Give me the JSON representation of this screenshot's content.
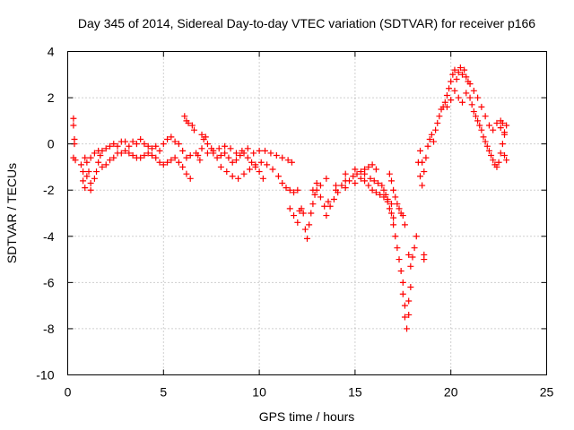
{
  "chart_data": {
    "type": "scatter",
    "title": "Day 345 of 2014, Sidereal Day-to-day VTEC variation (SDTVAR) for receiver p166",
    "xlabel": "GPS time / hours",
    "ylabel": "SDTVAR / TECUs",
    "xlim": [
      0,
      25
    ],
    "ylim": [
      -10,
      4
    ],
    "xticks": [
      0,
      5,
      10,
      15,
      20,
      25
    ],
    "yticks": [
      -10,
      -8,
      -6,
      -4,
      -2,
      0,
      2,
      4
    ],
    "grid": true,
    "marker": "plus",
    "color": "#ff0000",
    "series": [
      {
        "name": "p166",
        "points": [
          [
            0.3,
            1.1
          ],
          [
            0.3,
            0.8
          ],
          [
            0.35,
            0.2
          ],
          [
            0.35,
            0.0
          ],
          [
            0.3,
            -0.6
          ],
          [
            0.4,
            -0.7
          ],
          [
            0.7,
            -0.9
          ],
          [
            0.8,
            -1.2
          ],
          [
            0.8,
            -1.6
          ],
          [
            0.9,
            -1.9
          ],
          [
            1.0,
            -1.4
          ],
          [
            1.1,
            -1.2
          ],
          [
            1.2,
            -1.7
          ],
          [
            1.2,
            -2.0
          ],
          [
            1.4,
            -1.5
          ],
          [
            1.5,
            -1.2
          ],
          [
            1.6,
            -0.8
          ],
          [
            1.7,
            -0.5
          ],
          [
            0.9,
            -0.6
          ],
          [
            1.0,
            -0.8
          ],
          [
            1.2,
            -0.6
          ],
          [
            1.4,
            -0.4
          ],
          [
            1.6,
            -0.3
          ],
          [
            1.8,
            -0.3
          ],
          [
            2.0,
            -0.2
          ],
          [
            2.2,
            -0.1
          ],
          [
            2.4,
            0.0
          ],
          [
            2.6,
            -0.1
          ],
          [
            2.8,
            0.1
          ],
          [
            3.0,
            0.1
          ],
          [
            3.2,
            -0.1
          ],
          [
            3.4,
            0.1
          ],
          [
            3.6,
            0.0
          ],
          [
            3.8,
            0.2
          ],
          [
            4.0,
            0.0
          ],
          [
            4.2,
            -0.1
          ],
          [
            4.4,
            -0.2
          ],
          [
            4.6,
            -0.1
          ],
          [
            4.8,
            -0.3
          ],
          [
            5.0,
            0.0
          ],
          [
            5.2,
            0.2
          ],
          [
            5.4,
            0.3
          ],
          [
            5.6,
            0.1
          ],
          [
            5.8,
            0.0
          ],
          [
            6.0,
            -0.3
          ],
          [
            6.2,
            -0.6
          ],
          [
            6.4,
            -0.5
          ],
          [
            1.8,
            -1.0
          ],
          [
            2.0,
            -0.9
          ],
          [
            2.2,
            -0.7
          ],
          [
            2.4,
            -0.6
          ],
          [
            2.6,
            -0.4
          ],
          [
            2.8,
            -0.4
          ],
          [
            3.0,
            -0.3
          ],
          [
            3.2,
            -0.4
          ],
          [
            3.4,
            -0.5
          ],
          [
            3.6,
            -0.6
          ],
          [
            3.8,
            -0.6
          ],
          [
            4.0,
            -0.5
          ],
          [
            4.2,
            -0.4
          ],
          [
            4.4,
            -0.5
          ],
          [
            4.6,
            -0.6
          ],
          [
            4.8,
            -0.8
          ],
          [
            5.0,
            -0.9
          ],
          [
            5.2,
            -0.8
          ],
          [
            5.4,
            -0.7
          ],
          [
            5.6,
            -0.6
          ],
          [
            5.8,
            -0.8
          ],
          [
            6.0,
            -1.0
          ],
          [
            6.2,
            -1.3
          ],
          [
            6.4,
            -1.5
          ],
          [
            6.1,
            1.2
          ],
          [
            6.2,
            1.0
          ],
          [
            6.3,
            0.9
          ],
          [
            6.5,
            0.8
          ],
          [
            6.6,
            0.6
          ],
          [
            6.7,
            -0.4
          ],
          [
            6.8,
            -0.5
          ],
          [
            6.9,
            -0.7
          ],
          [
            7.0,
            0.4
          ],
          [
            7.1,
            0.2
          ],
          [
            7.2,
            0.3
          ],
          [
            7.3,
            0.0
          ],
          [
            7.5,
            -0.2
          ],
          [
            7.6,
            -0.4
          ],
          [
            7.8,
            -0.6
          ],
          [
            8.0,
            -0.5
          ],
          [
            8.2,
            -0.4
          ],
          [
            8.4,
            -0.6
          ],
          [
            8.6,
            -0.8
          ],
          [
            8.8,
            -0.7
          ],
          [
            9.0,
            -0.5
          ],
          [
            9.2,
            -0.4
          ],
          [
            9.4,
            -0.6
          ],
          [
            9.6,
            -0.8
          ],
          [
            9.8,
            -1.0
          ],
          [
            10.0,
            -1.2
          ],
          [
            10.2,
            -1.5
          ],
          [
            7.0,
            -0.2
          ],
          [
            7.3,
            -0.4
          ],
          [
            7.6,
            -0.3
          ],
          [
            7.9,
            -0.2
          ],
          [
            8.2,
            -0.1
          ],
          [
            8.5,
            -0.2
          ],
          [
            8.8,
            -0.4
          ],
          [
            9.1,
            -0.3
          ],
          [
            9.4,
            -0.2
          ],
          [
            9.7,
            -0.4
          ],
          [
            10.0,
            -0.3
          ],
          [
            10.3,
            -0.3
          ],
          [
            10.6,
            -0.4
          ],
          [
            10.9,
            -0.5
          ],
          [
            11.2,
            -0.6
          ],
          [
            11.5,
            -0.7
          ],
          [
            11.7,
            -0.8
          ],
          [
            8.0,
            -1.0
          ],
          [
            8.3,
            -1.2
          ],
          [
            8.6,
            -1.4
          ],
          [
            8.9,
            -1.5
          ],
          [
            9.2,
            -1.3
          ],
          [
            9.5,
            -1.1
          ],
          [
            9.8,
            -0.9
          ],
          [
            10.1,
            -0.8
          ],
          [
            10.4,
            -0.9
          ],
          [
            10.7,
            -1.1
          ],
          [
            11.0,
            -1.4
          ],
          [
            11.2,
            -1.7
          ],
          [
            11.4,
            -1.9
          ],
          [
            11.6,
            -2.0
          ],
          [
            11.8,
            -2.1
          ],
          [
            12.0,
            -2.0
          ],
          [
            11.6,
            -2.8
          ],
          [
            11.8,
            -3.1
          ],
          [
            12.0,
            -3.4
          ],
          [
            12.1,
            -2.9
          ],
          [
            12.2,
            -2.8
          ],
          [
            12.3,
            -3.0
          ],
          [
            12.4,
            -3.7
          ],
          [
            12.5,
            -4.1
          ],
          [
            12.6,
            -3.5
          ],
          [
            12.7,
            -3.0
          ],
          [
            12.8,
            -2.6
          ],
          [
            12.9,
            -2.2
          ],
          [
            13.0,
            -2.0
          ],
          [
            13.2,
            -2.3
          ],
          [
            13.4,
            -2.7
          ],
          [
            13.5,
            -3.1
          ],
          [
            13.7,
            -2.7
          ],
          [
            13.9,
            -2.4
          ],
          [
            14.1,
            -2.1
          ],
          [
            14.3,
            -1.8
          ],
          [
            14.5,
            -1.6
          ],
          [
            14.7,
            -1.6
          ],
          [
            14.9,
            -1.4
          ],
          [
            15.1,
            -1.3
          ],
          [
            15.3,
            -1.2
          ],
          [
            15.5,
            -1.1
          ],
          [
            15.7,
            -1.0
          ],
          [
            15.9,
            -0.9
          ],
          [
            16.1,
            -1.1
          ],
          [
            12.8,
            -2.0
          ],
          [
            13.0,
            -1.7
          ],
          [
            13.2,
            -1.8
          ],
          [
            13.6,
            -2.5
          ],
          [
            14.0,
            -2.0
          ],
          [
            14.5,
            -1.3
          ],
          [
            15.0,
            -1.1
          ],
          [
            15.5,
            -1.3
          ],
          [
            15.8,
            -1.5
          ],
          [
            16.0,
            -1.6
          ],
          [
            16.2,
            -1.7
          ],
          [
            16.4,
            -1.8
          ],
          [
            16.5,
            -2.0
          ],
          [
            16.6,
            -2.2
          ],
          [
            16.7,
            -2.4
          ],
          [
            16.8,
            -2.8
          ],
          [
            16.9,
            -3.0
          ],
          [
            17.0,
            -3.2
          ],
          [
            13.5,
            -1.5
          ],
          [
            14.0,
            -1.8
          ],
          [
            14.5,
            -1.9
          ],
          [
            15.0,
            -1.7
          ],
          [
            15.3,
            -1.5
          ],
          [
            15.5,
            -1.6
          ],
          [
            15.7,
            -1.8
          ],
          [
            15.9,
            -2.0
          ],
          [
            16.1,
            -2.1
          ],
          [
            16.3,
            -2.2
          ],
          [
            16.5,
            -2.3
          ],
          [
            16.7,
            -2.5
          ],
          [
            16.9,
            -2.6
          ],
          [
            17.0,
            -3.5
          ],
          [
            17.1,
            -4.0
          ],
          [
            17.2,
            -4.5
          ],
          [
            17.3,
            -5.0
          ],
          [
            17.4,
            -5.5
          ],
          [
            17.5,
            -6.0
          ],
          [
            17.5,
            -6.5
          ],
          [
            17.6,
            -7.0
          ],
          [
            17.6,
            -7.5
          ],
          [
            17.7,
            -8.0
          ],
          [
            17.8,
            -7.4
          ],
          [
            17.8,
            -6.8
          ],
          [
            17.9,
            -6.2
          ],
          [
            16.8,
            -1.3
          ],
          [
            16.9,
            -1.6
          ],
          [
            17.0,
            -2.0
          ],
          [
            17.1,
            -2.3
          ],
          [
            17.2,
            -2.6
          ],
          [
            17.3,
            -2.8
          ],
          [
            17.4,
            -3.0
          ],
          [
            17.5,
            -3.1
          ],
          [
            17.6,
            -3.5
          ],
          [
            17.8,
            -4.8
          ],
          [
            17.9,
            -5.3
          ],
          [
            18.0,
            -4.9
          ],
          [
            18.1,
            -4.5
          ],
          [
            18.2,
            -4.0
          ],
          [
            18.4,
            -1.4
          ],
          [
            18.5,
            -1.8
          ],
          [
            18.6,
            -4.8
          ],
          [
            18.6,
            -5.0
          ],
          [
            18.3,
            -0.8
          ],
          [
            18.4,
            -0.3
          ],
          [
            18.5,
            -0.8
          ],
          [
            18.6,
            -1.2
          ],
          [
            18.7,
            -0.6
          ],
          [
            18.8,
            -0.1
          ],
          [
            18.9,
            0.2
          ],
          [
            19.0,
            0.4
          ],
          [
            19.1,
            0.1
          ],
          [
            19.2,
            0.6
          ],
          [
            19.3,
            0.9
          ],
          [
            19.4,
            1.2
          ],
          [
            19.5,
            1.5
          ],
          [
            19.6,
            1.6
          ],
          [
            19.7,
            1.8
          ],
          [
            19.8,
            2.1
          ],
          [
            19.9,
            2.4
          ],
          [
            20.0,
            2.7
          ],
          [
            20.1,
            3.0
          ],
          [
            20.2,
            3.2
          ],
          [
            20.3,
            2.8
          ],
          [
            20.4,
            3.1
          ],
          [
            20.5,
            3.3
          ],
          [
            20.6,
            3.0
          ],
          [
            20.7,
            3.2
          ],
          [
            20.8,
            2.9
          ],
          [
            20.9,
            2.7
          ],
          [
            19.8,
            1.6
          ],
          [
            20.0,
            1.9
          ],
          [
            20.2,
            2.3
          ],
          [
            20.4,
            2.0
          ],
          [
            20.6,
            1.8
          ],
          [
            20.8,
            2.2
          ],
          [
            21.0,
            2.0
          ],
          [
            21.1,
            1.7
          ],
          [
            21.2,
            1.4
          ],
          [
            21.3,
            1.2
          ],
          [
            21.4,
            1.0
          ],
          [
            21.5,
            0.8
          ],
          [
            21.6,
            0.6
          ],
          [
            21.7,
            0.3
          ],
          [
            21.8,
            0.1
          ],
          [
            21.9,
            -0.1
          ],
          [
            22.0,
            -0.3
          ],
          [
            22.1,
            -0.5
          ],
          [
            22.2,
            -0.7
          ],
          [
            22.3,
            -0.9
          ],
          [
            22.4,
            -1.0
          ],
          [
            22.5,
            -0.8
          ],
          [
            22.6,
            -0.4
          ],
          [
            22.7,
            0.0
          ],
          [
            22.8,
            0.4
          ],
          [
            22.9,
            0.8
          ],
          [
            21.0,
            2.6
          ],
          [
            21.2,
            2.3
          ],
          [
            21.4,
            2.0
          ],
          [
            21.6,
            1.6
          ],
          [
            21.8,
            1.2
          ],
          [
            22.0,
            0.8
          ],
          [
            22.2,
            0.6
          ],
          [
            22.4,
            0.9
          ],
          [
            22.6,
            0.7
          ],
          [
            22.8,
            0.5
          ],
          [
            22.8,
            -0.5
          ],
          [
            22.9,
            -0.7
          ],
          [
            22.7,
            0.9
          ],
          [
            22.6,
            1.0
          ]
        ]
      }
    ]
  }
}
